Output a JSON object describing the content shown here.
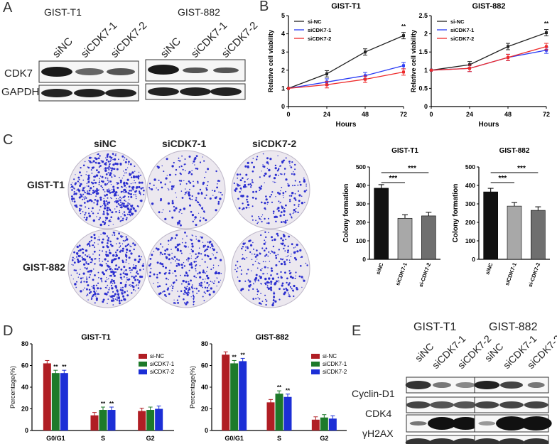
{
  "panels": {
    "a": "A",
    "b": "B",
    "c": "C",
    "d": "D",
    "e": "E"
  },
  "blotA": {
    "cell_t1": "GIST-T1",
    "cell_882": "GIST-882",
    "lanes": [
      "siNC",
      "siCDK7-1",
      "siCDK7-2"
    ],
    "rows": [
      "CDK7",
      "GAPDH"
    ]
  },
  "panelC": {
    "cols": [
      "siNC",
      "siCDK7-1",
      "siCDK7-2"
    ],
    "rows": [
      "GIST-T1",
      "GIST-882"
    ]
  },
  "blotE": {
    "cell_t1": "GIST-T1",
    "cell_882": "GIST-882",
    "lanes": [
      "siNC",
      "siCDK7-1",
      "siCDK7-2"
    ],
    "rows": [
      "Cyclin-D1",
      "CDK4",
      "γH2AX",
      "GAPDH"
    ]
  },
  "chart_data": [
    {
      "type": "line",
      "title": "GIST-T1",
      "xlabel": "Hours",
      "ylabel": "Relative cell viability",
      "x": [
        0,
        24,
        48,
        72
      ],
      "xlim": [
        0,
        72
      ],
      "ylim": [
        0,
        5
      ],
      "legend": "top-left",
      "significance": "**",
      "series": [
        {
          "name": "si-NC",
          "color": "#222222",
          "values": [
            1.0,
            1.8,
            3.0,
            3.9
          ]
        },
        {
          "name": "siCDK7-1",
          "color": "#2a3cf5",
          "values": [
            1.0,
            1.35,
            1.7,
            2.25
          ]
        },
        {
          "name": "siCDK7-2",
          "color": "#ee2a2a",
          "values": [
            1.0,
            1.2,
            1.5,
            1.9
          ]
        }
      ]
    },
    {
      "type": "line",
      "title": "GIST-882",
      "xlabel": "Hours",
      "ylabel": "Relative cell viability",
      "x": [
        0,
        24,
        48,
        72
      ],
      "xlim": [
        0,
        72
      ],
      "ylim": [
        0,
        2.5
      ],
      "legend": "top-left",
      "significance": "**",
      "series": [
        {
          "name": "si-NC",
          "color": "#222222",
          "values": [
            1.0,
            1.15,
            1.65,
            2.03
          ]
        },
        {
          "name": "siCDK7-1",
          "color": "#2a3cf5",
          "values": [
            1.0,
            1.05,
            1.35,
            1.55
          ]
        },
        {
          "name": "siCDK7-2",
          "color": "#ee2a2a",
          "values": [
            1.0,
            1.05,
            1.35,
            1.65
          ]
        }
      ]
    },
    {
      "type": "bar",
      "title": "GIST-T1",
      "ylabel": "Colony formation",
      "categories": [
        "siNC",
        "siCDK7-1",
        "si-CDK7-2"
      ],
      "values": [
        385,
        222,
        235
      ],
      "ylim": [
        0,
        500
      ],
      "colors": [
        "#111111",
        "#a8a8a8",
        "#6f6f6f"
      ],
      "significance": [
        "***",
        "***"
      ]
    },
    {
      "type": "bar",
      "title": "GIST-882",
      "ylabel": "Colony formation",
      "categories": [
        "siNC",
        "siCDK7-1",
        "si-CDK7-2"
      ],
      "values": [
        365,
        288,
        265
      ],
      "ylim": [
        0,
        500
      ],
      "colors": [
        "#111111",
        "#a8a8a8",
        "#6f6f6f"
      ],
      "significance": [
        "***",
        "***"
      ]
    },
    {
      "type": "bar",
      "title": "GIST-T1",
      "ylabel": "Percentage(%)",
      "categories": [
        "G0/G1",
        "S",
        "G2"
      ],
      "ylim": [
        0,
        80
      ],
      "legend": "top-right",
      "series": [
        {
          "name": "si-NC",
          "color": "#b01e24",
          "values": [
            62,
            14,
            18
          ]
        },
        {
          "name": "siCDK7-1",
          "color": "#1d7a2a",
          "values": [
            53,
            19,
            19
          ]
        },
        {
          "name": "siCDK7-2",
          "color": "#1c2fd6",
          "values": [
            53,
            19,
            20
          ]
        }
      ],
      "annotations": [
        "**",
        "**",
        "**",
        "**"
      ]
    },
    {
      "type": "bar",
      "title": "GIST-882",
      "ylabel": "Percentage(%)",
      "categories": [
        "G0/G1",
        "S",
        "G2"
      ],
      "ylim": [
        0,
        80
      ],
      "legend": "top-right",
      "series": [
        {
          "name": "si-NC",
          "color": "#b01e24",
          "values": [
            70,
            26,
            10
          ]
        },
        {
          "name": "siCDK7-1",
          "color": "#1d7a2a",
          "values": [
            62,
            34,
            12
          ]
        },
        {
          "name": "siCDK7-2",
          "color": "#1c2fd6",
          "values": [
            64,
            31,
            11
          ]
        }
      ],
      "annotations": [
        "**",
        "**",
        "**",
        "**"
      ]
    }
  ]
}
